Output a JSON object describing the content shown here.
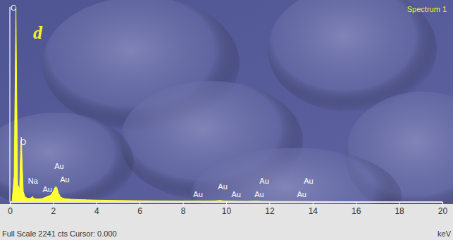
{
  "chart_data": {
    "type": "area",
    "title": "Spectrum 1",
    "panel_label": "d",
    "footer": "Full Scale 2241 cts Cursor: 0.000",
    "x_label": "keV",
    "color": "#ffff33",
    "tick_labels": "x",
    "xlim": [
      0,
      20
    ],
    "xticks": [
      0,
      2,
      4,
      6,
      8,
      10,
      12,
      14,
      16,
      18,
      20
    ],
    "ylim": [
      0,
      2241
    ],
    "x": [
      0,
      0.1,
      0.2,
      0.25,
      0.28,
      0.31,
      0.36,
      0.45,
      0.5,
      0.53,
      0.56,
      0.62,
      0.7,
      0.8,
      0.9,
      1.0,
      1.04,
      1.08,
      1.15,
      1.3,
      1.5,
      1.7,
      1.9,
      2.0,
      2.05,
      2.12,
      2.18,
      2.25,
      2.35,
      2.5,
      2.8,
      3.2,
      3.6,
      4,
      5,
      6,
      7,
      8,
      8.5,
      9,
      9.5,
      9.71,
      9.9,
      10.5,
      11,
      11.44,
      11.6,
      12,
      13,
      14,
      15,
      16,
      17,
      18,
      19,
      20
    ],
    "values": [
      0,
      5,
      300,
      1500,
      2241,
      1400,
      200,
      150,
      600,
      744,
      500,
      120,
      60,
      45,
      40,
      50,
      65,
      48,
      38,
      35,
      40,
      60,
      80,
      120,
      150,
      178,
      160,
      100,
      55,
      40,
      32,
      28,
      25,
      22,
      18,
      15,
      13,
      11,
      12,
      11,
      13,
      18,
      12,
      9,
      8,
      11,
      8,
      7,
      6,
      5,
      4,
      3,
      3,
      2,
      2,
      2
    ],
    "annotations": [
      {
        "text": "C",
        "x": 0.16,
        "y": 2225
      },
      {
        "text": "O",
        "x": 0.62,
        "y": 680
      },
      {
        "text": "Na",
        "x": 1.07,
        "y": 235
      },
      {
        "text": "Au",
        "x": 1.73,
        "y": 138
      },
      {
        "text": "Au",
        "x": 2.28,
        "y": 405
      },
      {
        "text": "Au",
        "x": 2.54,
        "y": 251
      },
      {
        "text": "Au",
        "x": 8.7,
        "y": 81
      },
      {
        "text": "Au",
        "x": 9.84,
        "y": 170
      },
      {
        "text": "Au",
        "x": 10.46,
        "y": 81
      },
      {
        "text": "Au",
        "x": 11.76,
        "y": 235
      },
      {
        "text": "Au",
        "x": 11.53,
        "y": 81
      },
      {
        "text": "Au",
        "x": 13.81,
        "y": 235
      },
      {
        "text": "Au",
        "x": 13.49,
        "y": 81
      }
    ]
  }
}
